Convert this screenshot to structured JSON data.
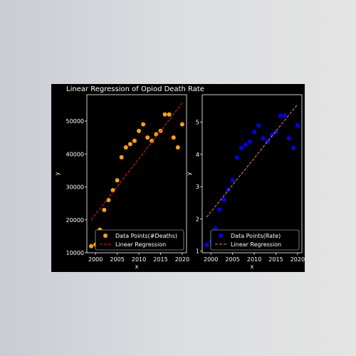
{
  "figure": {
    "title": "Linear Regression of Opiod Death Rate",
    "background": "#000000"
  },
  "chart_data": [
    {
      "type": "scatter",
      "xlabel": "x",
      "ylabel": "y",
      "xlim": [
        1998,
        2021
      ],
      "ylim": [
        10000,
        58000
      ],
      "xticks": [
        2000,
        2005,
        2010,
        2015,
        2020
      ],
      "yticks": [
        10000,
        20000,
        30000,
        40000,
        50000
      ],
      "legend_position": "lower-right",
      "series": [
        {
          "name": "Data Points(#Deaths)",
          "kind": "scatter",
          "color": "#ffa500",
          "x": [
            1999,
            2000,
            2001,
            2002,
            2003,
            2004,
            2005,
            2006,
            2007,
            2008,
            2009,
            2010,
            2011,
            2012,
            2013,
            2014,
            2015,
            2016,
            2017,
            2018,
            2019,
            2020
          ],
          "y": [
            12000,
            12500,
            17000,
            23000,
            26000,
            29000,
            32000,
            39000,
            42000,
            43000,
            44000,
            47000,
            49000,
            45000,
            44000,
            46000,
            47000,
            52000,
            52000,
            45000,
            42000,
            49000
          ]
        },
        {
          "name": "Linear Regression",
          "kind": "line",
          "dash": true,
          "color": "#e8231e",
          "x": [
            1999,
            2020
          ],
          "y": [
            20000,
            55500
          ]
        }
      ]
    },
    {
      "type": "scatter",
      "xlabel": "x",
      "ylabel": "y",
      "xlim": [
        1998,
        2021
      ],
      "ylim": [
        0.95,
        5.85
      ],
      "xticks": [
        2000,
        2005,
        2010,
        2015,
        2020
      ],
      "yticks": [
        1,
        2,
        3,
        4,
        5
      ],
      "legend_position": "lower-right",
      "series": [
        {
          "name": "Data Points(Rate)",
          "kind": "scatter",
          "color": "#0000ff",
          "x": [
            1999,
            2000,
            2001,
            2002,
            2003,
            2004,
            2005,
            2006,
            2007,
            2008,
            2009,
            2010,
            2011,
            2012,
            2013,
            2014,
            2015,
            2016,
            2017,
            2018,
            2019,
            2020
          ],
          "y": [
            1.2,
            1.3,
            1.7,
            2.3,
            2.6,
            2.9,
            3.2,
            3.9,
            4.2,
            4.3,
            4.4,
            4.7,
            4.9,
            4.5,
            4.4,
            4.6,
            4.7,
            5.2,
            5.2,
            4.5,
            4.2,
            4.9
          ]
        },
        {
          "name": "Linear Regression",
          "kind": "line",
          "dash": true,
          "color": "#f08080",
          "x": [
            1999,
            2020
          ],
          "y": [
            2.05,
            5.55
          ]
        }
      ]
    }
  ]
}
